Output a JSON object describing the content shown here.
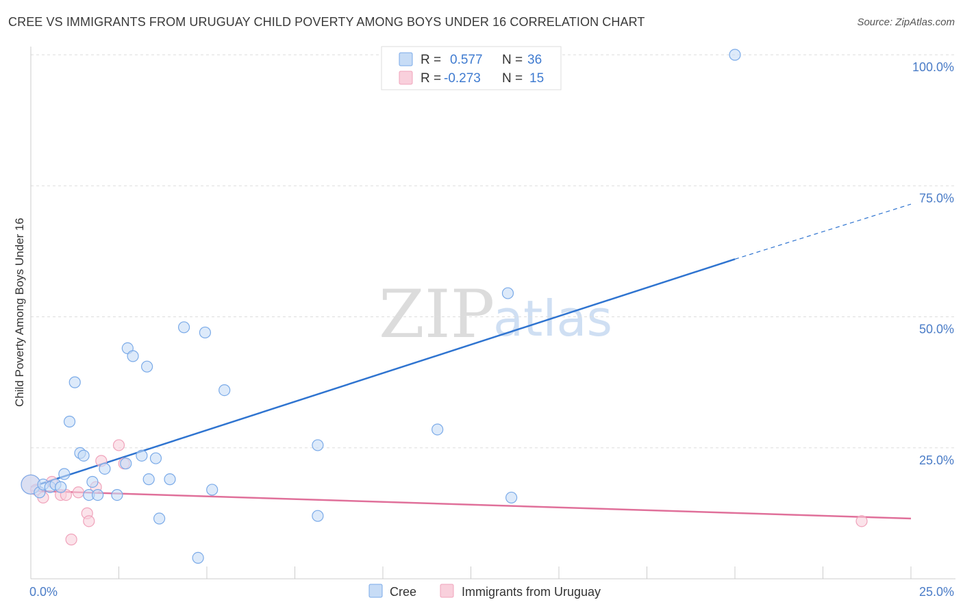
{
  "title": "CREE VS IMMIGRANTS FROM URUGUAY CHILD POVERTY AMONG BOYS UNDER 16 CORRELATION CHART",
  "source": "Source: ZipAtlas.com",
  "watermark": {
    "zip": "ZIP",
    "atlas": "atlas"
  },
  "colors": {
    "cree": "#7aaae8",
    "cree_fill": "#c7dcf6",
    "cree_line": "#2f74d0",
    "uruguay": "#f0a3bb",
    "uruguay_fill": "#f9d0dc",
    "uruguay_line": "#e0709a",
    "grid": "#dddddd",
    "tick": "#4a7cc7"
  },
  "legend": {
    "rows": [
      {
        "r_label": "R =",
        "r_value": "0.577",
        "n_label": "N =",
        "n_value": "36"
      },
      {
        "r_label": "R =",
        "r_value": "-0.273",
        "n_label": "N =",
        "n_value": "15"
      }
    ]
  },
  "chart_data": {
    "type": "scatter",
    "title": "CREE VS IMMIGRANTS FROM URUGUAY CHILD POVERTY AMONG BOYS UNDER 16 CORRELATION CHART",
    "xlabel": "",
    "ylabel": "Child Poverty Among Boys Under 16",
    "xlim": [
      0,
      25
    ],
    "ylim": [
      0,
      100
    ],
    "x_tick_labels": [
      {
        "value": 0,
        "label": "0.0%"
      },
      {
        "value": 25,
        "label": "25.0%"
      }
    ],
    "y_tick_labels": [
      {
        "value": 25,
        "label": "25.0%"
      },
      {
        "value": 50,
        "label": "50.0%"
      },
      {
        "value": 75,
        "label": "75.0%"
      },
      {
        "value": 100,
        "label": "100.0%"
      }
    ],
    "series": [
      {
        "name": "Cree",
        "color": "#7aaae8",
        "points": [
          {
            "x": 0.0,
            "y": 18.0
          },
          {
            "x": 0.25,
            "y": 16.5
          },
          {
            "x": 0.35,
            "y": 18.0
          },
          {
            "x": 0.55,
            "y": 17.5
          },
          {
            "x": 0.7,
            "y": 18.0
          },
          {
            "x": 0.85,
            "y": 17.5
          },
          {
            "x": 0.95,
            "y": 20.0
          },
          {
            "x": 1.1,
            "y": 30.0
          },
          {
            "x": 1.25,
            "y": 37.5
          },
          {
            "x": 1.4,
            "y": 24.0
          },
          {
            "x": 1.5,
            "y": 23.5
          },
          {
            "x": 1.65,
            "y": 16.0
          },
          {
            "x": 1.75,
            "y": 18.5
          },
          {
            "x": 1.9,
            "y": 16.0
          },
          {
            "x": 2.1,
            "y": 21.0
          },
          {
            "x": 2.45,
            "y": 16.0
          },
          {
            "x": 2.7,
            "y": 22.0
          },
          {
            "x": 2.75,
            "y": 44.0
          },
          {
            "x": 2.9,
            "y": 42.5
          },
          {
            "x": 3.15,
            "y": 23.5
          },
          {
            "x": 3.3,
            "y": 40.5
          },
          {
            "x": 3.35,
            "y": 19.0
          },
          {
            "x": 3.55,
            "y": 23.0
          },
          {
            "x": 3.65,
            "y": 11.5
          },
          {
            "x": 3.95,
            "y": 19.0
          },
          {
            "x": 4.35,
            "y": 48.0
          },
          {
            "x": 4.75,
            "y": 4.0
          },
          {
            "x": 4.95,
            "y": 47.0
          },
          {
            "x": 5.15,
            "y": 17.0
          },
          {
            "x": 5.5,
            "y": 36.0
          },
          {
            "x": 8.15,
            "y": 25.5
          },
          {
            "x": 8.15,
            "y": 12.0
          },
          {
            "x": 11.55,
            "y": 28.5
          },
          {
            "x": 13.55,
            "y": 54.5
          },
          {
            "x": 13.65,
            "y": 15.5
          },
          {
            "x": 20.0,
            "y": 100.0
          }
        ],
        "trend": {
          "x0": 0,
          "y0": 17.5,
          "x1": 20.0,
          "y1": 61.0,
          "dash_x1": 25,
          "dash_y1": 71.5
        }
      },
      {
        "name": "Immigrants from Uruguay",
        "color": "#f0a3bb",
        "points": [
          {
            "x": 0.0,
            "y": 18.0
          },
          {
            "x": 0.15,
            "y": 17.0
          },
          {
            "x": 0.35,
            "y": 15.5
          },
          {
            "x": 0.6,
            "y": 18.5
          },
          {
            "x": 0.85,
            "y": 16.0
          },
          {
            "x": 1.0,
            "y": 16.0
          },
          {
            "x": 1.15,
            "y": 7.5
          },
          {
            "x": 1.35,
            "y": 16.5
          },
          {
            "x": 1.6,
            "y": 12.5
          },
          {
            "x": 1.65,
            "y": 11.0
          },
          {
            "x": 1.85,
            "y": 17.5
          },
          {
            "x": 2.0,
            "y": 22.5
          },
          {
            "x": 2.5,
            "y": 25.5
          },
          {
            "x": 2.65,
            "y": 22.0
          },
          {
            "x": 23.6,
            "y": 11.0
          }
        ],
        "trend": {
          "x0": 0,
          "y0": 16.8,
          "x1": 25,
          "y1": 11.5
        }
      }
    ],
    "legend_placement": "top-center"
  }
}
